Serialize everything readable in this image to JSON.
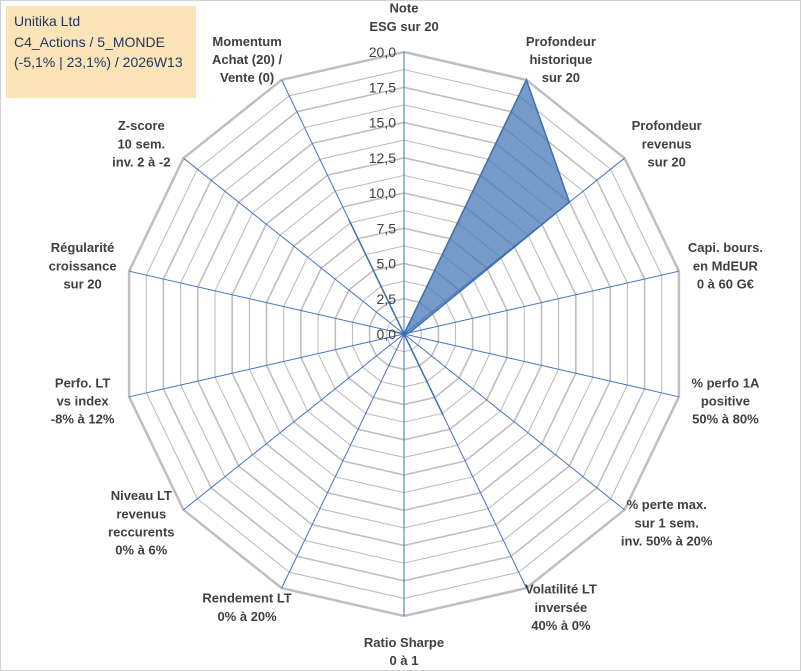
{
  "chart_data": {
    "type": "radar",
    "title_lines": [
      "Unitika Ltd",
      "C4_Actions / 5_MONDE",
      "(-5,1% | 23,1%) / 2026W13"
    ],
    "rmin": 0,
    "rmax": 20,
    "tick_step": 2.5,
    "tick_labels": [
      "0,0",
      "2,5",
      "5,0",
      "7,5",
      "10,0",
      "12,5",
      "15,0",
      "17,5",
      "20,0"
    ],
    "axes": [
      {
        "id": "esg",
        "label": [
          "Note",
          "ESG sur 20"
        ],
        "value": 0
      },
      {
        "id": "profondeur-historique",
        "label": [
          "Profondeur",
          "historique",
          "sur 20"
        ],
        "value": 20
      },
      {
        "id": "profondeur-revenus",
        "label": [
          "Profondeur",
          "revenus",
          "sur 20"
        ],
        "value": 15
      },
      {
        "id": "capi-bours",
        "label": [
          "Capi. bours.",
          "en MdEUR",
          "0 à 60 G€"
        ],
        "value": 0.4
      },
      {
        "id": "perfo-1a",
        "label": [
          "% perfo 1A",
          "positive",
          "50% à 80%"
        ],
        "value": 0
      },
      {
        "id": "perte-max",
        "label": [
          "% perte max.",
          "sur 1 sem.",
          "inv. 50% à 20%"
        ],
        "value": 0
      },
      {
        "id": "volatilite",
        "label": [
          "Volatilité LT",
          "inversée",
          "40% à 0%"
        ],
        "value": 6.4
      },
      {
        "id": "ratio-sharpe",
        "label": [
          "Ratio Sharpe",
          "0 à 1"
        ],
        "value": 0
      },
      {
        "id": "rendement-lt",
        "label": [
          "Rendement LT",
          "0% à 20%"
        ],
        "value": 0
      },
      {
        "id": "niveau-lt-revenus",
        "label": [
          "Niveau LT",
          "revenus",
          "reccurents",
          "0% à 6%"
        ],
        "value": 0
      },
      {
        "id": "perfo-lt-index",
        "label": [
          "Perfo. LT",
          "vs index",
          "-8% à 12%"
        ],
        "value": 0
      },
      {
        "id": "regularite",
        "label": [
          "Régularité",
          "croissance",
          "sur 20"
        ],
        "value": 0.6
      },
      {
        "id": "zscore",
        "label": [
          "Z-score",
          "10 sem.",
          "inv. 2 à -2"
        ],
        "value": 0
      },
      {
        "id": "momentum",
        "label": [
          "Momentum",
          "Achat (20) /",
          "Vente (0)"
        ],
        "value": 9
      }
    ],
    "colors": {
      "fill": "#4a7ab5",
      "fill_opacity": 0.75,
      "stroke": "#3e6fb0",
      "grid": "#bfbfbf",
      "spoke": "#4472c4",
      "title_bg": "#fbe5b8",
      "title_text": "#1f3864"
    }
  }
}
